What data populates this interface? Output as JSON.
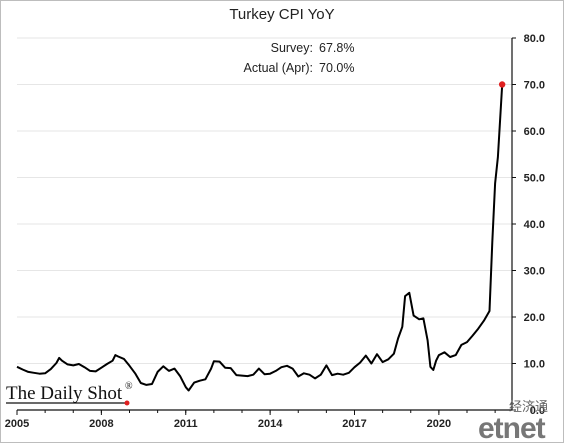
{
  "chart_data": {
    "type": "line",
    "title": "Turkey CPI YoY",
    "annotation": {
      "survey_label": "Survey:",
      "survey_value": "67.8%",
      "actual_label": "Actual (Apr):",
      "actual_value": "70.0%"
    },
    "xlabel": "",
    "ylabel": "",
    "xlim": [
      2005.0,
      2022.6
    ],
    "ylim": [
      0,
      80
    ],
    "y_ticks": [
      "0.0",
      "10.0",
      "20.0",
      "30.0",
      "40.0",
      "50.0",
      "60.0",
      "70.0",
      "80.0"
    ],
    "x_ticks": [
      "2005",
      "2008",
      "2011",
      "2014",
      "2017",
      "2020"
    ],
    "x_tick_values": [
      2005,
      2008,
      2011,
      2014,
      2017,
      2020
    ],
    "grid": true,
    "highlight": {
      "x": 2022.25,
      "y": 70.0,
      "color": "#e02020"
    },
    "series": [
      {
        "x": [
          2005.0,
          2005.2,
          2005.4,
          2005.6,
          2005.8,
          2006.0,
          2006.2,
          2006.4,
          2006.5,
          2006.6,
          2006.8,
          2007.0,
          2007.2,
          2007.4,
          2007.6,
          2007.8,
          2008.0,
          2008.2,
          2008.4,
          2008.5,
          2008.6,
          2008.8,
          2009.0,
          2009.2,
          2009.4,
          2009.6,
          2009.8,
          2010.0,
          2010.2,
          2010.4,
          2010.6,
          2010.8,
          2011.0,
          2011.1,
          2011.3,
          2011.5,
          2011.7,
          2011.9,
          2012.0,
          2012.2,
          2012.4,
          2012.6,
          2012.8,
          2013.0,
          2013.2,
          2013.4,
          2013.6,
          2013.8,
          2014.0,
          2014.2,
          2014.4,
          2014.6,
          2014.8,
          2015.0,
          2015.2,
          2015.4,
          2015.6,
          2015.8,
          2016.0,
          2016.2,
          2016.4,
          2016.6,
          2016.8,
          2017.0,
          2017.2,
          2017.4,
          2017.6,
          2017.8,
          2018.0,
          2018.2,
          2018.4,
          2018.55,
          2018.7,
          2018.8,
          2018.95,
          2019.1,
          2019.3,
          2019.45,
          2019.6,
          2019.7,
          2019.8,
          2019.9,
          2020.0,
          2020.2,
          2020.4,
          2020.6,
          2020.8,
          2021.0,
          2021.2,
          2021.4,
          2021.6,
          2021.8,
          2021.9,
          2022.0,
          2022.1,
          2022.25
        ],
        "values": [
          9.3,
          8.7,
          8.2,
          8.0,
          7.8,
          7.9,
          8.8,
          10.1,
          11.2,
          10.6,
          9.8,
          9.6,
          9.9,
          9.2,
          8.4,
          8.3,
          9.1,
          9.9,
          10.6,
          11.8,
          11.5,
          11.0,
          9.5,
          7.9,
          5.8,
          5.4,
          5.6,
          8.2,
          9.4,
          8.4,
          8.9,
          7.3,
          4.9,
          4.2,
          5.9,
          6.3,
          6.6,
          8.9,
          10.5,
          10.4,
          9.1,
          9.0,
          7.5,
          7.4,
          7.3,
          7.6,
          8.9,
          7.7,
          7.8,
          8.4,
          9.2,
          9.5,
          8.9,
          7.2,
          7.9,
          7.6,
          6.8,
          7.6,
          9.6,
          7.5,
          7.8,
          7.6,
          8.0,
          9.2,
          10.2,
          11.7,
          10.0,
          12.0,
          10.3,
          10.9,
          12.1,
          15.4,
          17.9,
          24.5,
          25.2,
          20.3,
          19.5,
          19.7,
          15.0,
          9.3,
          8.6,
          10.6,
          11.8,
          12.4,
          11.4,
          11.8,
          14.0,
          14.6,
          16.0,
          17.5,
          19.2,
          21.3,
          36.1,
          48.7,
          54.4,
          70.0
        ]
      }
    ]
  },
  "branding": {
    "source_logo": "The Daily Shot",
    "source_logo_mark": "®",
    "watermark_cn": "经济通",
    "watermark_en": "etnet"
  }
}
